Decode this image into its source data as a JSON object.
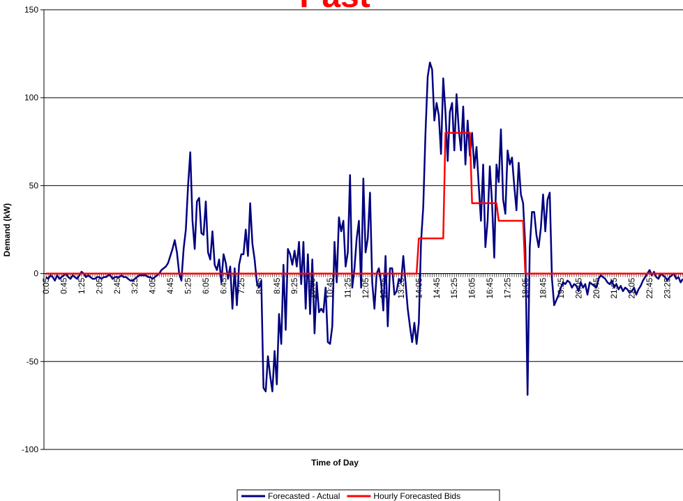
{
  "chart_data": {
    "type": "line",
    "title": "Past",
    "x_label": "Time of Day",
    "y_label": "Demand (kW)",
    "ylim": [
      -100,
      150
    ],
    "yticks": [
      -100,
      -50,
      0,
      50,
      100,
      150
    ],
    "grid": true,
    "legend": "bottom",
    "categories": [
      "0:05",
      null,
      null,
      null,
      null,
      null,
      null,
      null,
      "0:45",
      null,
      null,
      null,
      null,
      null,
      null,
      null,
      "1:25",
      null,
      null,
      null,
      null,
      null,
      null,
      null,
      "2:05",
      null,
      null,
      null,
      null,
      null,
      null,
      null,
      "2:45",
      null,
      null,
      null,
      null,
      null,
      null,
      null,
      "3:25",
      null,
      null,
      null,
      null,
      null,
      null,
      null,
      "4:05",
      null,
      null,
      null,
      null,
      null,
      null,
      null,
      "4:45",
      null,
      null,
      null,
      null,
      null,
      null,
      null,
      "5:25",
      null,
      null,
      null,
      null,
      null,
      null,
      null,
      "6:05",
      null,
      null,
      null,
      null,
      null,
      null,
      null,
      "6:45",
      null,
      null,
      null,
      null,
      null,
      null,
      null,
      "7:25",
      null,
      null,
      null,
      null,
      null,
      null,
      null,
      "8:05",
      null,
      null,
      null,
      null,
      null,
      null,
      null,
      "8:45",
      null,
      null,
      null,
      null,
      null,
      null,
      null,
      "9:25",
      null,
      null,
      null,
      null,
      null,
      null,
      null,
      "10:05",
      null,
      null,
      null,
      null,
      null,
      null,
      null,
      "10:45",
      null,
      null,
      null,
      null,
      null,
      null,
      null,
      "11:25",
      null,
      null,
      null,
      null,
      null,
      null,
      null,
      "12:05",
      null,
      null,
      null,
      null,
      null,
      null,
      null,
      "12:45",
      null,
      null,
      null,
      null,
      null,
      null,
      null,
      "13:25",
      null,
      null,
      null,
      null,
      null,
      null,
      null,
      "14:05",
      null,
      null,
      null,
      null,
      null,
      null,
      null,
      "14:45",
      null,
      null,
      null,
      null,
      null,
      null,
      null,
      "15:25",
      null,
      null,
      null,
      null,
      null,
      null,
      null,
      "16:05",
      null,
      null,
      null,
      null,
      null,
      null,
      null,
      "16:45",
      null,
      null,
      null,
      null,
      null,
      null,
      null,
      "17:25",
      null,
      null,
      null,
      null,
      null,
      null,
      null,
      "18:05",
      null,
      null,
      null,
      null,
      null,
      null,
      null,
      "18:45",
      null,
      null,
      null,
      null,
      null,
      null,
      null,
      "19:25",
      null,
      null,
      null,
      null,
      null,
      null,
      null,
      "20:05",
      null,
      null,
      null,
      null,
      null,
      null,
      null,
      "20:45",
      null,
      null,
      null,
      null,
      null,
      null,
      null,
      "21:25",
      null,
      null,
      null,
      null,
      null,
      null,
      null,
      "22:05",
      null,
      null,
      null,
      null,
      null,
      null,
      null,
      "22:45",
      null,
      null,
      null,
      null,
      null,
      null,
      null,
      "23:25",
      null,
      null,
      null,
      null,
      null,
      null,
      null
    ],
    "series": [
      {
        "name": "Forecasted - Actual",
        "color": "#000080",
        "values": [
          -2,
          -3,
          -1,
          -2,
          -4,
          -1,
          -3,
          -2,
          -1,
          0,
          -2,
          -3,
          -1,
          -2,
          -3,
          -1,
          1,
          0,
          -2,
          -1,
          -2,
          -3,
          -3,
          -2,
          -2,
          -3,
          -2,
          -2,
          -1,
          -1,
          -3,
          -2,
          -2,
          -2,
          -1,
          -2,
          -2,
          -3,
          -4,
          -4,
          -3,
          -2,
          -1,
          -1,
          -1,
          -1,
          -2,
          -2,
          -3,
          -2,
          -1,
          0,
          2,
          3,
          4,
          6,
          10,
          14,
          19,
          12,
          0,
          -4,
          14,
          25,
          50,
          69,
          30,
          14,
          41,
          43,
          23,
          22,
          41,
          12,
          8,
          24,
          5,
          2,
          8,
          -5,
          11,
          6,
          -3,
          4,
          -20,
          3,
          -18,
          5,
          11,
          11,
          25,
          10,
          40,
          17,
          8,
          -5,
          -8,
          -4,
          -65,
          -67,
          -47,
          -58,
          -67,
          -44,
          -63,
          -23,
          -40,
          5,
          -32,
          14,
          11,
          5,
          13,
          4,
          18,
          -6,
          18,
          -20,
          11,
          -23,
          8,
          -34,
          -5,
          -22,
          -20,
          -22,
          -8,
          -39,
          -40,
          -30,
          18,
          -5,
          32,
          24,
          30,
          4,
          12,
          56,
          -8,
          3,
          20,
          30,
          -8,
          54,
          12,
          20,
          46,
          -5,
          -20,
          0,
          3,
          -5,
          -21,
          10,
          -30,
          3,
          3,
          -12,
          -10,
          -3,
          -5,
          10,
          -5,
          -20,
          -30,
          -39,
          -28,
          -40,
          -28,
          18,
          38,
          80,
          112,
          120,
          116,
          87,
          97,
          90,
          68,
          111,
          92,
          64,
          92,
          97,
          70,
          102,
          82,
          70,
          95,
          62,
          87,
          67,
          80,
          60,
          72,
          50,
          30,
          62,
          15,
          30,
          61,
          40,
          9,
          62,
          52,
          82,
          42,
          34,
          70,
          62,
          66,
          50,
          36,
          63,
          45,
          40,
          15,
          -69,
          15,
          35,
          35,
          22,
          15,
          26,
          45,
          24,
          42,
          46,
          -3,
          -18,
          -15,
          -12,
          -8,
          -5,
          -6,
          -4,
          -5,
          -8,
          -6,
          -7,
          -10,
          -5,
          -8,
          -6,
          -12,
          -5,
          -6,
          -7,
          -8,
          -3,
          -1,
          -2,
          -3,
          -5,
          -6,
          -4,
          -8,
          -6,
          -9,
          -7,
          -10,
          -8,
          -9,
          -11,
          -10,
          -8,
          -12,
          -9,
          -7,
          -4,
          -2,
          0,
          2,
          -1,
          1,
          -2,
          -3,
          0,
          -1,
          -2,
          -4,
          -2,
          -1,
          0,
          -3,
          -2,
          -5,
          -3
        ]
      },
      {
        "name": "Hourly Forecasted Bids",
        "color": "#ff0000",
        "values": [
          0,
          0,
          0,
          0,
          0,
          0,
          0,
          0,
          0,
          0,
          0,
          0,
          0,
          0,
          0,
          0,
          0,
          0,
          0,
          0,
          0,
          0,
          0,
          0,
          0,
          0,
          0,
          0,
          0,
          0,
          0,
          0,
          0,
          0,
          0,
          0,
          0,
          0,
          0,
          0,
          0,
          0,
          0,
          0,
          0,
          0,
          0,
          0,
          0,
          0,
          0,
          0,
          0,
          0,
          0,
          0,
          0,
          0,
          0,
          0,
          0,
          0,
          0,
          0,
          0,
          0,
          0,
          0,
          0,
          0,
          0,
          0,
          0,
          0,
          0,
          0,
          0,
          0,
          0,
          0,
          0,
          0,
          0,
          0,
          0,
          0,
          0,
          0,
          0,
          0,
          0,
          0,
          0,
          0,
          0,
          0,
          0,
          0,
          0,
          0,
          0,
          0,
          0,
          0,
          0,
          0,
          0,
          0,
          0,
          0,
          0,
          0,
          0,
          0,
          0,
          0,
          0,
          0,
          0,
          0,
          0,
          0,
          0,
          0,
          0,
          0,
          0,
          0,
          0,
          0,
          0,
          0,
          0,
          0,
          0,
          0,
          0,
          0,
          0,
          0,
          0,
          0,
          0,
          0,
          0,
          0,
          0,
          0,
          0,
          0,
          0,
          0,
          0,
          0,
          0,
          0,
          0,
          0,
          0,
          0,
          0,
          0,
          0,
          0,
          0,
          0,
          0,
          0,
          20,
          20,
          20,
          20,
          20,
          20,
          20,
          20,
          20,
          20,
          20,
          20,
          80,
          80,
          80,
          80,
          80,
          80,
          80,
          80,
          80,
          80,
          80,
          80,
          40,
          40,
          40,
          40,
          40,
          40,
          40,
          40,
          40,
          40,
          40,
          40,
          30,
          30,
          30,
          30,
          30,
          30,
          30,
          30,
          30,
          30,
          30,
          30,
          0,
          0,
          0,
          0,
          0,
          0,
          0,
          0,
          0,
          0,
          0,
          0,
          0,
          0,
          0,
          0,
          0,
          0,
          0,
          0,
          0,
          0,
          0,
          0,
          0,
          0,
          0,
          0,
          0,
          0,
          0,
          0,
          0,
          0,
          0,
          0,
          0,
          0,
          0,
          0,
          0,
          0,
          0,
          0,
          0,
          0,
          0,
          0,
          0,
          0,
          0,
          0,
          0,
          0,
          0,
          0,
          0,
          0,
          0,
          0,
          0,
          0,
          0,
          0,
          0,
          0,
          0,
          0,
          0,
          0,
          0,
          0
        ]
      }
    ]
  }
}
